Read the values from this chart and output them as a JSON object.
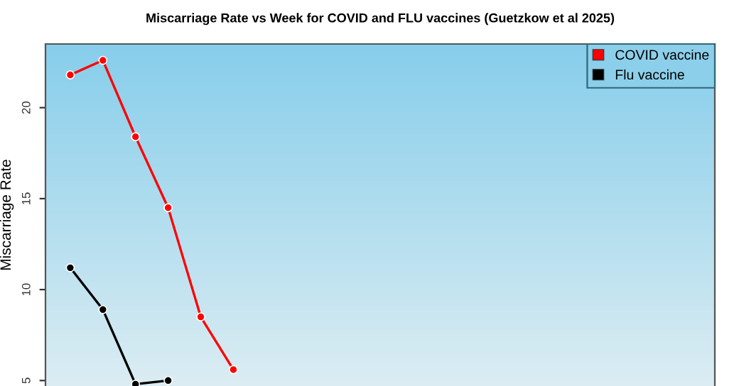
{
  "chart_data": {
    "type": "line",
    "title": "Miscarriage Rate vs Week for COVID and FLU vaccines (Guetzkow et al 2025)",
    "ylabel": "Miscarriage Rate",
    "categories": [
      null,
      null,
      null,
      null,
      null,
      null,
      null,
      null,
      null,
      null,
      null,
      null,
      null,
      null,
      null,
      null,
      null,
      null,
      null,
      null
    ],
    "series": [
      {
        "name": "COVID vaccine",
        "color": "#ff0000",
        "values": [
          21.8,
          22.6,
          18.4,
          14.5,
          8.5,
          5.6,
          null,
          null,
          null,
          null,
          null,
          null,
          null,
          null,
          null,
          null,
          null,
          null,
          null,
          null
        ]
      },
      {
        "name": "Flu vaccine",
        "color": "#000000",
        "values": [
          11.2,
          8.9,
          4.8,
          5.0,
          null,
          null,
          null,
          null,
          null,
          null,
          null,
          null,
          null,
          null,
          null,
          null,
          null,
          null,
          null,
          null
        ]
      }
    ],
    "ylim": [
      4.7,
      23.5
    ],
    "yticks": [
      5,
      10,
      15,
      20
    ],
    "marker": "circle",
    "line_style": "solid",
    "grid": false,
    "legend": "top right"
  }
}
